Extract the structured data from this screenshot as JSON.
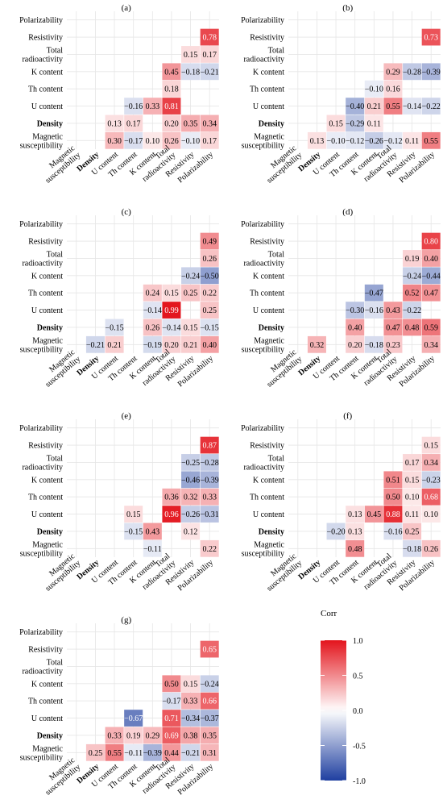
{
  "chart_data": {
    "type": "heatmap",
    "variables": [
      "Magnetic susceptibility",
      "Density",
      "U content",
      "Th content",
      "K content",
      "Total radioactivity",
      "Resistivity",
      "Polarizability"
    ],
    "y_labels": [
      "Polarizability",
      "Resistivity",
      "Total radioactivity",
      "K content",
      "Th content",
      "U content",
      "Density",
      "Magnetic susceptibility"
    ],
    "x_labels": [
      "Magnetic susceptibility",
      "Density",
      "U content",
      "Th content",
      "K content",
      "Total radioactivity",
      "Resistivity",
      "Polarizability"
    ],
    "panels": [
      {
        "label": "(a)",
        "cells": [
          [
            "Resistivity",
            "Polarizability",
            0.78
          ],
          [
            "Total radioactivity",
            "Resistivity",
            0.15
          ],
          [
            "Total radioactivity",
            "Polarizability",
            0.17
          ],
          [
            "K content",
            "Total radioactivity",
            0.45
          ],
          [
            "K content",
            "Resistivity",
            -0.18
          ],
          [
            "K content",
            "Polarizability",
            -0.21
          ],
          [
            "Th content",
            "Total radioactivity",
            0.18
          ],
          [
            "U content",
            "Th content",
            -0.16
          ],
          [
            "U content",
            "K content",
            0.33
          ],
          [
            "U content",
            "Total radioactivity",
            0.81
          ],
          [
            "Density",
            "U content",
            0.13
          ],
          [
            "Density",
            "Th content",
            0.17
          ],
          [
            "Density",
            "Total radioactivity",
            0.2
          ],
          [
            "Density",
            "Resistivity",
            0.35
          ],
          [
            "Density",
            "Polarizability",
            0.34
          ],
          [
            "Magnetic susceptibility",
            "U content",
            0.3
          ],
          [
            "Magnetic susceptibility",
            "Th content",
            -0.17
          ],
          [
            "Magnetic susceptibility",
            "K content",
            0.1
          ],
          [
            "Magnetic susceptibility",
            "Total radioactivity",
            0.26
          ],
          [
            "Magnetic susceptibility",
            "Resistivity",
            -0.1
          ],
          [
            "Magnetic susceptibility",
            "Polarizability",
            0.17
          ]
        ]
      },
      {
        "label": "(b)",
        "cells": [
          [
            "Resistivity",
            "Polarizability",
            0.73
          ],
          [
            "K content",
            "Total radioactivity",
            0.29
          ],
          [
            "K content",
            "Resistivity",
            -0.28
          ],
          [
            "K content",
            "Polarizability",
            -0.39
          ],
          [
            "Th content",
            "K content",
            -0.1
          ],
          [
            "Th content",
            "Total radioactivity",
            0.16
          ],
          [
            "U content",
            "Th content",
            -0.4
          ],
          [
            "U content",
            "K content",
            0.21
          ],
          [
            "U content",
            "Total radioactivity",
            0.55
          ],
          [
            "U content",
            "Resistivity",
            -0.14
          ],
          [
            "U content",
            "Polarizability",
            -0.22
          ],
          [
            "Density",
            "U content",
            0.15
          ],
          [
            "Density",
            "Th content",
            -0.29
          ],
          [
            "Density",
            "K content",
            0.11
          ],
          [
            "Magnetic susceptibility",
            "Density",
            0.13
          ],
          [
            "Magnetic susceptibility",
            "U content",
            -0.1
          ],
          [
            "Magnetic susceptibility",
            "Th content",
            -0.12
          ],
          [
            "Magnetic susceptibility",
            "K content",
            -0.26
          ],
          [
            "Magnetic susceptibility",
            "Total radioactivity",
            -0.12
          ],
          [
            "Magnetic susceptibility",
            "Resistivity",
            0.11
          ],
          [
            "Magnetic susceptibility",
            "Polarizability",
            0.55
          ]
        ]
      },
      {
        "label": "(c)",
        "cells": [
          [
            "Resistivity",
            "Polarizability",
            0.49
          ],
          [
            "Total radioactivity",
            "Polarizability",
            0.26
          ],
          [
            "K content",
            "Resistivity",
            -0.24
          ],
          [
            "K content",
            "Polarizability",
            -0.5
          ],
          [
            "Th content",
            "K content",
            0.24
          ],
          [
            "Th content",
            "Total radioactivity",
            0.15
          ],
          [
            "Th content",
            "Resistivity",
            0.25
          ],
          [
            "Th content",
            "Polarizability",
            0.22
          ],
          [
            "U content",
            "K content",
            -0.14
          ],
          [
            "U content",
            "Total radioactivity",
            0.99
          ],
          [
            "U content",
            "Polarizability",
            0.25
          ],
          [
            "Density",
            "U content",
            -0.15
          ],
          [
            "Density",
            "K content",
            0.26
          ],
          [
            "Density",
            "Total radioactivity",
            -0.14
          ],
          [
            "Density",
            "Resistivity",
            0.15
          ],
          [
            "Density",
            "Polarizability",
            -0.15
          ],
          [
            "Magnetic susceptibility",
            "Density",
            -0.21
          ],
          [
            "Magnetic susceptibility",
            "U content",
            0.21
          ],
          [
            "Magnetic susceptibility",
            "K content",
            -0.19
          ],
          [
            "Magnetic susceptibility",
            "Total radioactivity",
            0.2
          ],
          [
            "Magnetic susceptibility",
            "Resistivity",
            0.21
          ],
          [
            "Magnetic susceptibility",
            "Polarizability",
            0.4
          ]
        ]
      },
      {
        "label": "(d)",
        "cells": [
          [
            "Resistivity",
            "Polarizability",
            0.8
          ],
          [
            "Total radioactivity",
            "Resistivity",
            0.19
          ],
          [
            "Total radioactivity",
            "Polarizability",
            0.4
          ],
          [
            "K content",
            "Resistivity",
            -0.24
          ],
          [
            "K content",
            "Polarizability",
            -0.44
          ],
          [
            "Th content",
            "K content",
            -0.47
          ],
          [
            "Th content",
            "Resistivity",
            0.52
          ],
          [
            "Th content",
            "Polarizability",
            0.47
          ],
          [
            "U content",
            "Th content",
            -0.3
          ],
          [
            "U content",
            "K content",
            -0.16
          ],
          [
            "U content",
            "Total radioactivity",
            0.43
          ],
          [
            "U content",
            "Resistivity",
            -0.22
          ],
          [
            "Density",
            "Th content",
            0.4
          ],
          [
            "Density",
            "Total radioactivity",
            0.47
          ],
          [
            "Density",
            "Resistivity",
            0.48
          ],
          [
            "Density",
            "Polarizability",
            0.59
          ],
          [
            "Magnetic susceptibility",
            "Density",
            0.32
          ],
          [
            "Magnetic susceptibility",
            "Th content",
            0.2
          ],
          [
            "Magnetic susceptibility",
            "K content",
            -0.18
          ],
          [
            "Magnetic susceptibility",
            "Total radioactivity",
            0.23
          ],
          [
            "Magnetic susceptibility",
            "Polarizability",
            0.34
          ]
        ]
      },
      {
        "label": "(e)",
        "cells": [
          [
            "Resistivity",
            "Polarizability",
            0.87
          ],
          [
            "Total radioactivity",
            "Resistivity",
            -0.25
          ],
          [
            "Total radioactivity",
            "Polarizability",
            -0.28
          ],
          [
            "K content",
            "Resistivity",
            -0.46
          ],
          [
            "K content",
            "Polarizability",
            -0.39
          ],
          [
            "Th content",
            "Total radioactivity",
            0.36
          ],
          [
            "Th content",
            "Resistivity",
            0.32
          ],
          [
            "Th content",
            "Polarizability",
            0.33
          ],
          [
            "U content",
            "Th content",
            0.15
          ],
          [
            "U content",
            "Total radioactivity",
            0.96
          ],
          [
            "U content",
            "Resistivity",
            -0.26
          ],
          [
            "U content",
            "Polarizability",
            -0.31
          ],
          [
            "Density",
            "Th content",
            -0.15
          ],
          [
            "Density",
            "K content",
            0.43
          ],
          [
            "Density",
            "Resistivity",
            0.12
          ],
          [
            "Magnetic susceptibility",
            "K content",
            -0.11
          ],
          [
            "Magnetic susceptibility",
            "Polarizability",
            0.22
          ]
        ]
      },
      {
        "label": "(f)",
        "cells": [
          [
            "Resistivity",
            "Polarizability",
            0.15
          ],
          [
            "Total radioactivity",
            "Resistivity",
            0.17
          ],
          [
            "Total radioactivity",
            "Polarizability",
            0.34
          ],
          [
            "K content",
            "Total radioactivity",
            0.51
          ],
          [
            "K content",
            "Resistivity",
            0.15
          ],
          [
            "K content",
            "Polarizability",
            -0.23
          ],
          [
            "Th content",
            "Total radioactivity",
            0.5
          ],
          [
            "Th content",
            "Resistivity",
            0.1
          ],
          [
            "Th content",
            "Polarizability",
            0.68
          ],
          [
            "U content",
            "Th content",
            0.13
          ],
          [
            "U content",
            "K content",
            0.45
          ],
          [
            "U content",
            "Total radioactivity",
            0.88
          ],
          [
            "U content",
            "Resistivity",
            0.11
          ],
          [
            "U content",
            "Polarizability",
            0.1
          ],
          [
            "Density",
            "U content",
            -0.2
          ],
          [
            "Density",
            "Th content",
            0.13
          ],
          [
            "Density",
            "Total radioactivity",
            -0.16
          ],
          [
            "Density",
            "Resistivity",
            0.25
          ],
          [
            "Magnetic susceptibility",
            "Th content",
            0.48
          ],
          [
            "Magnetic susceptibility",
            "Resistivity",
            -0.18
          ],
          [
            "Magnetic susceptibility",
            "Polarizability",
            0.26
          ]
        ]
      },
      {
        "label": "(g)",
        "cells": [
          [
            "Resistivity",
            "Polarizability",
            0.65
          ],
          [
            "K content",
            "Total radioactivity",
            0.5
          ],
          [
            "K content",
            "Resistivity",
            0.15
          ],
          [
            "K content",
            "Polarizability",
            -0.24
          ],
          [
            "Th content",
            "Total radioactivity",
            -0.17
          ],
          [
            "Th content",
            "Resistivity",
            0.33
          ],
          [
            "Th content",
            "Polarizability",
            0.66
          ],
          [
            "U content",
            "Th content",
            -0.67
          ],
          [
            "U content",
            "Total radioactivity",
            0.71
          ],
          [
            "U content",
            "Resistivity",
            -0.34
          ],
          [
            "U content",
            "Polarizability",
            -0.37
          ],
          [
            "Density",
            "U content",
            0.33
          ],
          [
            "Density",
            "Th content",
            0.19
          ],
          [
            "Density",
            "K content",
            0.29
          ],
          [
            "Density",
            "Total radioactivity",
            0.69
          ],
          [
            "Density",
            "Resistivity",
            0.38
          ],
          [
            "Density",
            "Polarizability",
            0.35
          ],
          [
            "Magnetic susceptibility",
            "Density",
            0.25
          ],
          [
            "Magnetic susceptibility",
            "U content",
            0.55
          ],
          [
            "Magnetic susceptibility",
            "Th content",
            -0.11
          ],
          [
            "Magnetic susceptibility",
            "K content",
            -0.39
          ],
          [
            "Magnetic susceptibility",
            "Total radioactivity",
            0.44
          ],
          [
            "Magnetic susceptibility",
            "Resistivity",
            -0.21
          ],
          [
            "Magnetic susceptibility",
            "Polarizability",
            0.31
          ]
        ]
      }
    ],
    "colorbar": {
      "title": "Corr",
      "range": [
        -1.0,
        1.0
      ],
      "ticks": [
        "1.0",
        "0.5",
        "0.0",
        "-0.5",
        "-1.0"
      ],
      "low_color": "#1f3fa0",
      "mid_color": "#ffffff",
      "high_color": "#e3141c"
    }
  }
}
